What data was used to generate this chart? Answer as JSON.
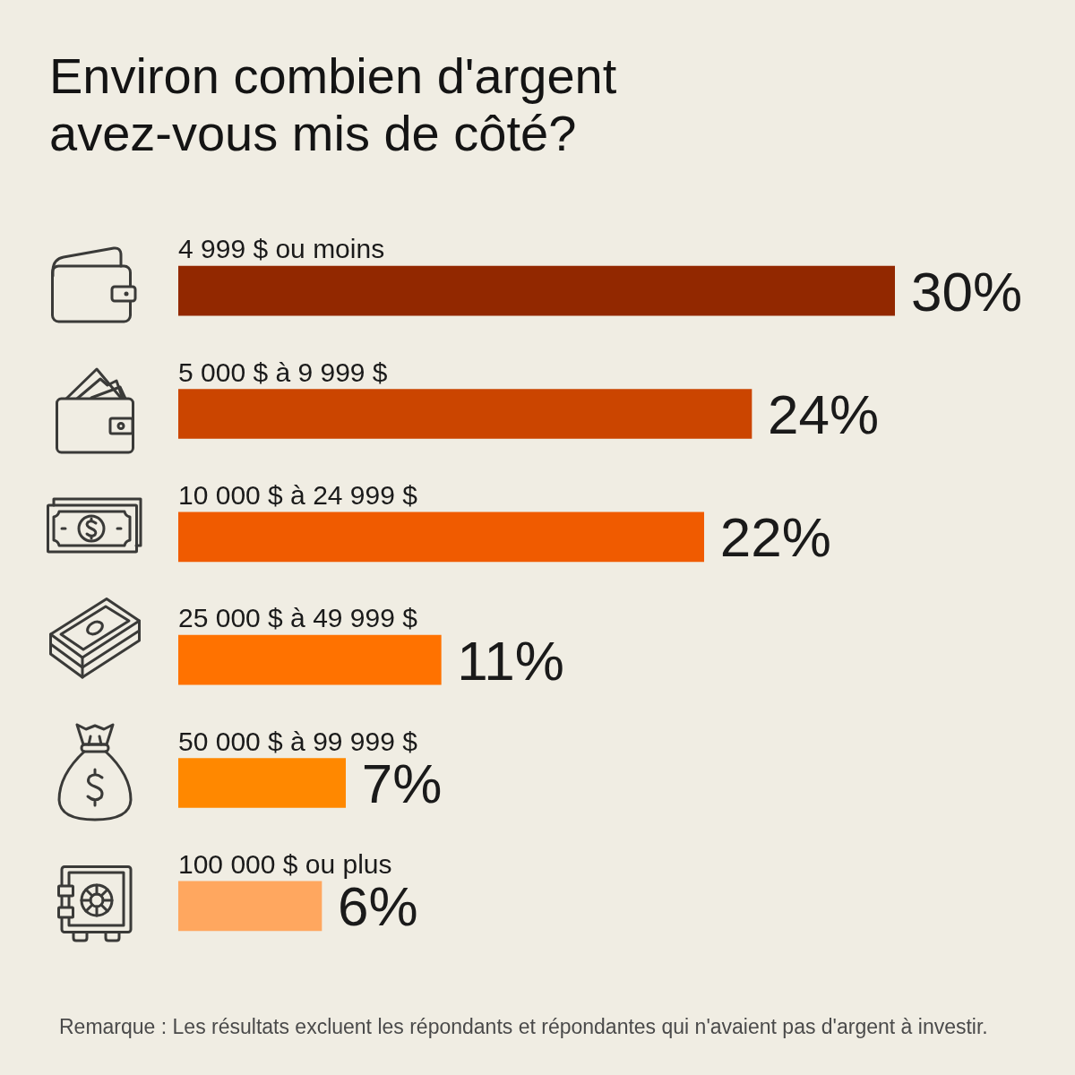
{
  "chart_data": {
    "type": "bar",
    "orientation": "horizontal",
    "title": "Environ combien d'argent avez-vous mis de côté?",
    "categories": [
      "4 999 $ ou moins",
      "5 000 $ à 9 999 $",
      "10 000 $ à 24 999 $",
      "25 000 $ à 49 999 $",
      "50 000 $ à 99 999 $",
      "100 000 $ ou plus"
    ],
    "values": [
      30,
      24,
      22,
      11,
      7,
      6
    ],
    "colors": [
      "#922800",
      "#cb4500",
      "#f05b00",
      "#ff7200",
      "#ff8800",
      "#ffa75f"
    ],
    "value_labels": [
      "30%",
      "24%",
      "22%",
      "11%",
      "7%",
      "6%"
    ],
    "tick_labels": "y",
    "annotations": [
      "Remarque : Les résultats excluent les répondants et répondantes qui n'avaient pas d'argent à investir."
    ]
  }
}
